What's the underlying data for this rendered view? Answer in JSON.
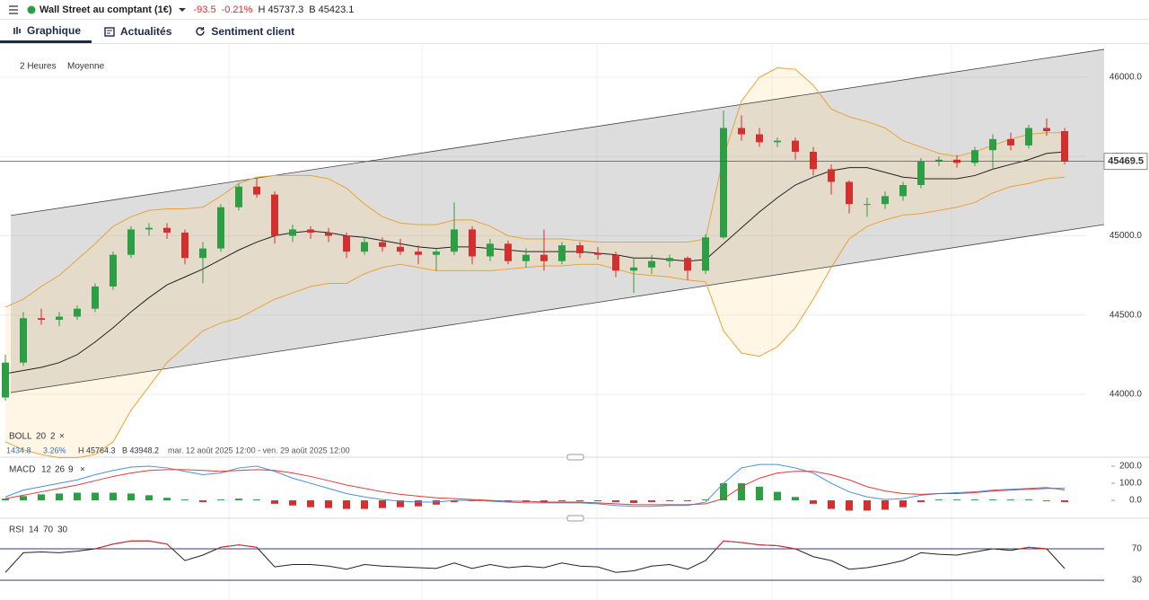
{
  "header": {
    "instrument": "Wall Street au comptant (1€)",
    "change": "-93.5",
    "change_pct": "-0.21%",
    "high": "H 45737.3",
    "low": "B 45423.1"
  },
  "tabs": [
    "Graphique",
    "Actualités",
    "Sentiment client"
  ],
  "toolbar": {
    "interval": "2 Heures",
    "style": "Moyenne"
  },
  "chart_data": [
    {
      "type": "candlestick",
      "up_color": "#2e9e44",
      "down_color": "#d32f2f",
      "open": [
        43980,
        44200,
        44480,
        44470,
        44490,
        44540,
        44680,
        44880,
        45040,
        45050,
        45020,
        44860,
        44920,
        45180,
        45310,
        45260,
        45000,
        45040,
        45020,
        45000,
        44900,
        44960,
        44930,
        44900,
        44880,
        44900,
        45040,
        44870,
        44950,
        44840,
        44880,
        44840,
        44940,
        44890,
        44880,
        44780,
        44800,
        44840,
        44860,
        44780,
        44990,
        45680,
        45640,
        45590,
        45600,
        45530,
        45420,
        45340,
        45200,
        45200,
        45250,
        45320,
        45470,
        45480,
        45460,
        45540,
        45610,
        45570,
        45680,
        45660
      ],
      "high": [
        44250,
        44520,
        44540,
        44520,
        44560,
        44700,
        44900,
        45060,
        45080,
        45080,
        45040,
        44960,
        45200,
        45330,
        45360,
        45280,
        45070,
        45060,
        45050,
        45020,
        44990,
        44990,
        44980,
        44940,
        44920,
        45210,
        45060,
        44980,
        44970,
        44920,
        45040,
        44960,
        44960,
        44930,
        44900,
        44860,
        44880,
        44880,
        44870,
        45010,
        45790,
        45760,
        45680,
        45620,
        45620,
        45560,
        45450,
        45350,
        45240,
        45280,
        45340,
        45490,
        45500,
        45510,
        45560,
        45640,
        45650,
        45700,
        45740,
        45680
      ],
      "low": [
        43960,
        44180,
        44440,
        44430,
        44470,
        44520,
        44660,
        44860,
        45000,
        44980,
        44820,
        44700,
        44900,
        45160,
        45240,
        44950,
        44960,
        44980,
        44960,
        44860,
        44880,
        44900,
        44880,
        44820,
        44780,
        44880,
        44820,
        44840,
        44820,
        44800,
        44780,
        44820,
        44860,
        44850,
        44740,
        44640,
        44760,
        44800,
        44720,
        44760,
        44980,
        45600,
        45560,
        45560,
        45480,
        45380,
        45260,
        45140,
        45120,
        45170,
        45220,
        45300,
        45440,
        45430,
        45440,
        45420,
        45540,
        45550,
        45630,
        45450
      ],
      "close": [
        44200,
        44480,
        44470,
        44490,
        44540,
        44680,
        44880,
        45040,
        45050,
        45020,
        44860,
        44920,
        45180,
        45310,
        45260,
        45000,
        45040,
        45020,
        45000,
        44900,
        44960,
        44930,
        44900,
        44880,
        44900,
        45040,
        44870,
        44950,
        44840,
        44880,
        44840,
        44940,
        44890,
        44880,
        44780,
        44800,
        44840,
        44860,
        44780,
        44990,
        45680,
        45640,
        45590,
        45600,
        45530,
        45420,
        45340,
        45200,
        45200,
        45250,
        45320,
        45470,
        45480,
        45460,
        45540,
        45610,
        45570,
        45680,
        45660,
        45469.5
      ],
      "ylim": [
        43626,
        46204
      ],
      "yticks": [
        {
          "value": 44000,
          "label": "44000.0"
        },
        {
          "value": 44500,
          "label": "44500.0"
        },
        {
          "value": 45000,
          "label": "45000.0"
        },
        {
          "value": 45500,
          "label": "45500.0"
        },
        {
          "value": 46000,
          "label": "46000.0"
        }
      ],
      "current_price": 45469.5,
      "channel": {
        "upper": [
          45128,
          46176
        ],
        "lower": [
          44011,
          45071
        ]
      },
      "bollinger": {
        "color": "#e8a33a",
        "middle": [
          44130,
          44150,
          44170,
          44200,
          44250,
          44330,
          44420,
          44520,
          44610,
          44690,
          44740,
          44790,
          44850,
          44910,
          44960,
          45000,
          45020,
          45030,
          45020,
          45000,
          44990,
          44970,
          44950,
          44930,
          44920,
          44930,
          44930,
          44920,
          44910,
          44900,
          44900,
          44900,
          44900,
          44890,
          44880,
          44860,
          44860,
          44850,
          44840,
          44850,
          44950,
          45050,
          45150,
          45240,
          45320,
          45370,
          45410,
          45430,
          45430,
          45400,
          45370,
          45360,
          45360,
          45360,
          45380,
          45420,
          45450,
          45480,
          45520,
          45530
        ],
        "upper": [
          44550,
          44600,
          44680,
          44750,
          44850,
          44950,
          45060,
          45120,
          45160,
          45170,
          45170,
          45180,
          45250,
          45330,
          45370,
          45380,
          45380,
          45380,
          45360,
          45300,
          45200,
          45120,
          45080,
          45070,
          45070,
          45100,
          45100,
          45060,
          45000,
          44980,
          44980,
          44980,
          44970,
          44960,
          44960,
          44960,
          44960,
          44960,
          44960,
          44980,
          45500,
          45850,
          46000,
          46060,
          46050,
          45950,
          45800,
          45750,
          45720,
          45680,
          45600,
          45560,
          45520,
          45500,
          45530,
          45570,
          45610,
          45640,
          45650,
          45650
        ],
        "lower": [
          43700,
          43650,
          43620,
          43600,
          43600,
          43620,
          43700,
          43900,
          44050,
          44200,
          44300,
          44400,
          44450,
          44480,
          44540,
          44600,
          44640,
          44680,
          44700,
          44700,
          44760,
          44800,
          44820,
          44800,
          44780,
          44780,
          44780,
          44780,
          44790,
          44800,
          44810,
          44810,
          44820,
          44820,
          44790,
          44760,
          44750,
          44740,
          44720,
          44710,
          44400,
          44260,
          44240,
          44300,
          44420,
          44600,
          44800,
          44980,
          45060,
          45100,
          45130,
          45140,
          45160,
          45180,
          45210,
          45270,
          45310,
          45330,
          45360,
          45370
        ]
      },
      "legend": {
        "name": "BOLL",
        "params": [
          "20",
          "2"
        ],
        "width": "1434.8",
        "width_pct": "3.26%",
        "high": "H 45764.3",
        "low": "B 43948.2",
        "range": "mar. 12 août 2025 12:00 - ven. 29 août 2025 12:00"
      }
    },
    {
      "type": "macd",
      "legend": {
        "name": "MACD",
        "params": [
          "12",
          "26",
          "9"
        ]
      },
      "ylim": [
        -68,
        237
      ],
      "yticks": [
        {
          "value": 0,
          "label": "0.0"
        },
        {
          "value": 100,
          "label": "100.0"
        },
        {
          "value": 200,
          "label": "200.0"
        }
      ],
      "histogram": [
        10,
        25,
        35,
        40,
        45,
        45,
        45,
        40,
        30,
        15,
        5,
        -10,
        5,
        10,
        5,
        -20,
        -30,
        -40,
        -45,
        -50,
        -50,
        -45,
        -40,
        -35,
        -25,
        -10,
        -5,
        -5,
        -10,
        -10,
        -10,
        -5,
        -5,
        -5,
        -10,
        -15,
        -10,
        -5,
        -5,
        5,
        100,
        100,
        80,
        50,
        20,
        -20,
        -50,
        -60,
        -60,
        -55,
        -40,
        -10,
        5,
        5,
        5,
        5,
        5,
        5,
        0,
        -10
      ],
      "series": [
        {
          "name": "MACD",
          "color": "#4a90d9",
          "values": [
            20,
            60,
            80,
            100,
            120,
            150,
            175,
            195,
            200,
            190,
            170,
            150,
            160,
            190,
            200,
            170,
            130,
            100,
            70,
            40,
            20,
            5,
            -5,
            -10,
            -10,
            0,
            0,
            -5,
            -10,
            -15,
            -15,
            -15,
            -15,
            -20,
            -30,
            -35,
            -35,
            -30,
            -30,
            -10,
            100,
            190,
            210,
            210,
            190,
            160,
            100,
            50,
            20,
            5,
            10,
            30,
            40,
            45,
            50,
            60,
            65,
            70,
            75,
            60
          ]
        },
        {
          "name": "Signal",
          "color": "#e03c3c",
          "values": [
            10,
            30,
            50,
            70,
            90,
            115,
            140,
            160,
            175,
            180,
            180,
            175,
            170,
            175,
            180,
            175,
            160,
            140,
            115,
            90,
            70,
            50,
            35,
            25,
            15,
            10,
            5,
            0,
            -5,
            -5,
            -10,
            -10,
            -10,
            -15,
            -20,
            -25,
            -25,
            -25,
            -25,
            -20,
            10,
            80,
            130,
            160,
            170,
            170,
            150,
            120,
            80,
            55,
            40,
            35,
            40,
            40,
            45,
            55,
            60,
            65,
            70,
            70
          ]
        }
      ]
    },
    {
      "type": "rsi",
      "legend": {
        "name": "RSI",
        "params": [
          "14",
          "70",
          "30"
        ]
      },
      "ylim": [
        8.3,
        99.7
      ],
      "yticks": [
        30,
        70
      ],
      "values": [
        40,
        65,
        66,
        65,
        67,
        70,
        76,
        80,
        80,
        76,
        55,
        62,
        72,
        75,
        72,
        47,
        50,
        50,
        48,
        44,
        50,
        48,
        47,
        46,
        45,
        52,
        45,
        50,
        46,
        48,
        46,
        52,
        48,
        47,
        40,
        42,
        48,
        50,
        44,
        55,
        80,
        78,
        75,
        74,
        70,
        60,
        55,
        44,
        46,
        50,
        55,
        65,
        63,
        62,
        66,
        70,
        68,
        72,
        70,
        45
      ]
    }
  ]
}
